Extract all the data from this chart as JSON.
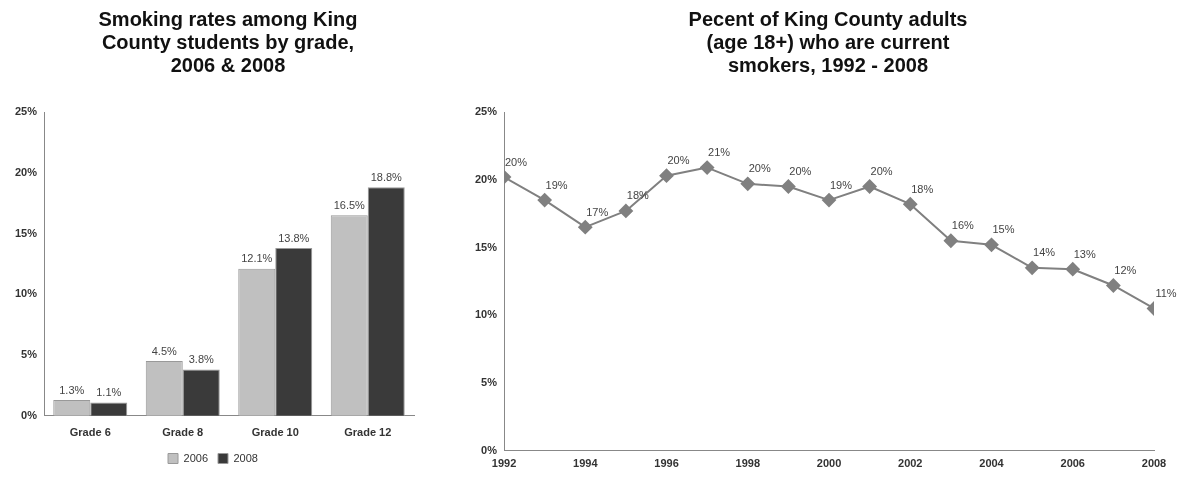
{
  "chart_data": [
    {
      "type": "bar",
      "title": "Smoking rates among King County students by grade, 2006 & 2008",
      "categories": [
        "Grade 6",
        "Grade 8",
        "Grade 10",
        "Grade 12"
      ],
      "series": [
        {
          "name": "2006",
          "color": "#c0c0c0",
          "values": [
            1.3,
            4.5,
            12.1,
            16.5
          ],
          "value_labels": [
            "1.3%",
            "4.5%",
            "12.1%",
            "16.5%"
          ]
        },
        {
          "name": "2008",
          "color": "#3a3a3a",
          "values": [
            1.1,
            3.8,
            13.8,
            18.8
          ],
          "value_labels": [
            "1.1%",
            "3.8%",
            "13.8%",
            "18.8%"
          ]
        }
      ],
      "ylim": [
        0,
        25
      ],
      "yticks": [
        {
          "value": 0,
          "label": "0%"
        },
        {
          "value": 5,
          "label": "5%"
        },
        {
          "value": 10,
          "label": "10%"
        },
        {
          "value": 15,
          "label": "15%"
        },
        {
          "value": 20,
          "label": "20%"
        },
        {
          "value": 25,
          "label": "25%"
        }
      ],
      "legend": "bottom"
    },
    {
      "type": "line",
      "title": "Pecent of King County adults (age 18+) who are current smokers, 1992 - 2008",
      "x": [
        1992,
        1993,
        1994,
        1995,
        1996,
        1997,
        1998,
        1999,
        2000,
        2001,
        2002,
        2003,
        2004,
        2005,
        2006,
        2007,
        2008
      ],
      "series": [
        {
          "color": "#808080",
          "values": [
            20.2,
            18.5,
            16.5,
            17.7,
            20.3,
            20.9,
            19.7,
            19.5,
            18.5,
            19.5,
            18.2,
            15.5,
            15.2,
            13.5,
            13.4,
            12.2,
            10.5
          ],
          "value_labels": [
            "20%",
            "19%",
            "17%",
            "18%",
            "20%",
            "21%",
            "20%",
            "20%",
            "19%",
            "20%",
            "18%",
            "16%",
            "15%",
            "14%",
            "13%",
            "12%",
            "11%"
          ]
        }
      ],
      "xlim": [
        1992,
        2008
      ],
      "xticks": [
        1992,
        1994,
        1996,
        1998,
        2000,
        2002,
        2004,
        2006,
        2008
      ],
      "ylim": [
        0,
        25
      ],
      "yticks": [
        {
          "value": 0,
          "label": "0%"
        },
        {
          "value": 5,
          "label": "5%"
        },
        {
          "value": 10,
          "label": "10%"
        },
        {
          "value": 15,
          "label": "15%"
        },
        {
          "value": 20,
          "label": "20%"
        },
        {
          "value": 25,
          "label": "25%"
        }
      ],
      "marker": "diamond"
    }
  ]
}
